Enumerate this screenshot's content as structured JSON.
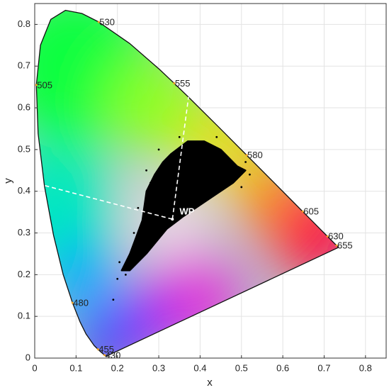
{
  "chart_data": {
    "type": "chromaticity",
    "xlabel": "x",
    "ylabel": "y",
    "xlim": [
      0,
      0.85
    ],
    "ylim": [
      0,
      0.85
    ],
    "xticks": [
      0,
      0.1,
      0.2,
      0.3,
      0.4,
      0.5,
      0.6,
      0.7,
      0.8
    ],
    "yticks": [
      0,
      0.1,
      0.2,
      0.3,
      0.4,
      0.5,
      0.6,
      0.7,
      0.8
    ],
    "grid": true,
    "locus": {
      "x": [
        0.1741,
        0.1714,
        0.1644,
        0.1566,
        0.144,
        0.1241,
        0.1096,
        0.0913,
        0.0687,
        0.0454,
        0.0235,
        0.0082,
        0.0039,
        0.0139,
        0.0389,
        0.0743,
        0.1142,
        0.1547,
        0.2296,
        0.3016,
        0.3373,
        0.3731,
        0.4441,
        0.5125,
        0.5752,
        0.627,
        0.6482,
        0.6658,
        0.6915,
        0.7079,
        0.719,
        0.73,
        0.7347
      ],
      "y": [
        0.005,
        0.0051,
        0.0109,
        0.0177,
        0.0297,
        0.0578,
        0.0868,
        0.1327,
        0.2007,
        0.295,
        0.4127,
        0.5384,
        0.6548,
        0.7502,
        0.812,
        0.8338,
        0.8262,
        0.8059,
        0.7543,
        0.6923,
        0.6589,
        0.6245,
        0.5547,
        0.4866,
        0.4242,
        0.3725,
        0.3514,
        0.334,
        0.3083,
        0.292,
        0.2809,
        0.27,
        0.2653
      ]
    },
    "wavelength_labels": [
      {
        "label": "430",
        "x": 0.169,
        "y": 0.007
      },
      {
        "label": "455",
        "x": 0.153,
        "y": 0.021
      },
      {
        "label": "480",
        "x": 0.0913,
        "y": 0.1327
      },
      {
        "label": "505",
        "x": 0.0039,
        "y": 0.6548
      },
      {
        "label": "530",
        "x": 0.1547,
        "y": 0.8059
      },
      {
        "label": "555",
        "x": 0.3373,
        "y": 0.6589
      },
      {
        "label": "580",
        "x": 0.5125,
        "y": 0.4866
      },
      {
        "label": "605",
        "x": 0.6482,
        "y": 0.3514
      },
      {
        "label": "630",
        "x": 0.7079,
        "y": 0.292
      },
      {
        "label": "655",
        "x": 0.73,
        "y": 0.27
      }
    ],
    "white_point": {
      "label": "WP",
      "x": 0.333,
      "y": 0.333
    },
    "dominant_lines": [
      {
        "x": [
          0.333,
          0.372
        ],
        "y": [
          0.333,
          0.626
        ]
      },
      {
        "x": [
          0.333,
          0.019
        ],
        "y": [
          0.333,
          0.415
        ]
      }
    ],
    "cloud": {
      "color": "#000000",
      "x": [
        0.21,
        0.23,
        0.26,
        0.27,
        0.29,
        0.31,
        0.33,
        0.37,
        0.41,
        0.45,
        0.49,
        0.51,
        0.48,
        0.42,
        0.36,
        0.32,
        0.27,
        0.23
      ],
      "y": [
        0.21,
        0.25,
        0.33,
        0.4,
        0.44,
        0.47,
        0.49,
        0.52,
        0.52,
        0.5,
        0.46,
        0.45,
        0.42,
        0.38,
        0.34,
        0.31,
        0.25,
        0.21
      ]
    },
    "points": {
      "color": "#000000",
      "x": [
        0.2,
        0.205,
        0.22,
        0.25,
        0.24,
        0.27,
        0.52,
        0.51,
        0.5,
        0.3,
        0.35,
        0.44,
        0.19,
        0.28
      ],
      "y": [
        0.19,
        0.23,
        0.2,
        0.36,
        0.3,
        0.45,
        0.44,
        0.47,
        0.41,
        0.5,
        0.53,
        0.53,
        0.14,
        0.42
      ]
    }
  }
}
